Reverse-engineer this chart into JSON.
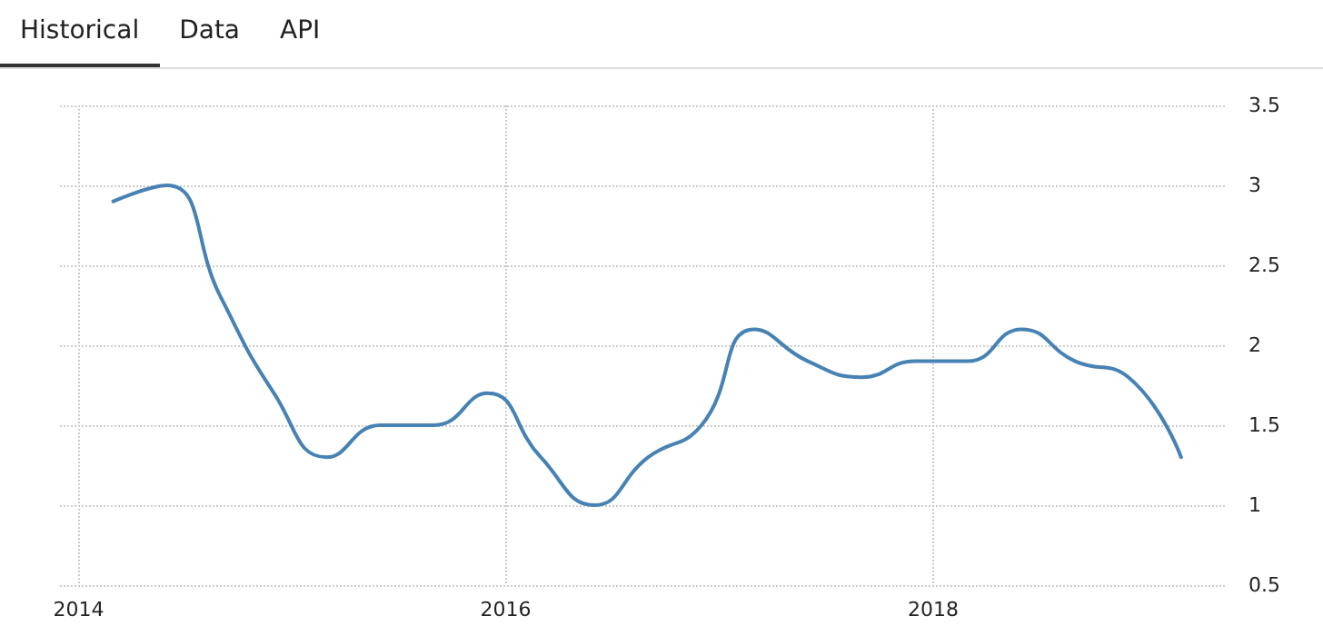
{
  "chart_data": {
    "type": "line",
    "annotations": [
      "Historical",
      "Data",
      "API"
    ],
    "x": [
      "2014-03",
      "2014-06",
      "2014-09",
      "2014-12",
      "2015-03",
      "2015-06",
      "2015-09",
      "2015-12",
      "2016-03",
      "2016-06",
      "2016-09",
      "2016-12",
      "2017-03",
      "2017-06",
      "2017-09",
      "2017-12",
      "2018-03",
      "2018-06",
      "2018-09",
      "2018-12",
      "2019-03"
    ],
    "series": [
      {
        "color": "#4682b4",
        "values": [
          2.9,
          3.0,
          2.3,
          1.7,
          1.3,
          1.5,
          1.5,
          1.7,
          1.3,
          1.0,
          1.3,
          1.5,
          2.1,
          1.9,
          1.8,
          1.9,
          1.9,
          2.1,
          1.9,
          1.8,
          1.3
        ]
      }
    ],
    "xlim": [
      "2013-11-30",
      "2019-05-18"
    ],
    "xticks": [
      {
        "value": "2014",
        "label": "2014"
      },
      {
        "value": "2016",
        "label": "2016"
      },
      {
        "value": "2018",
        "label": "2018"
      }
    ],
    "ylim": [
      0.5,
      3.5
    ],
    "yticks": [
      0.5,
      1,
      1.5,
      2,
      2.5,
      3,
      3.5
    ],
    "grid": true,
    "marker": "none",
    "line_style": "solid"
  }
}
